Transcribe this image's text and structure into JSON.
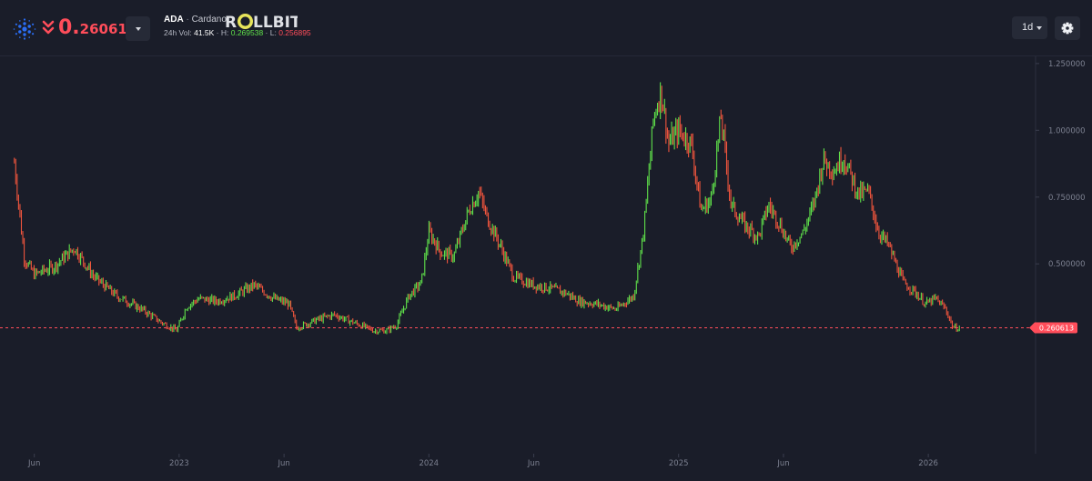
{
  "header": {
    "price_int": "0.",
    "price_dec": "260613",
    "symbol": "ADA",
    "name_sep": " · ",
    "name": "Cardano",
    "stats_prefix": "24h Vol: ",
    "volume": "41.5K",
    "high_prefix": " · H: ",
    "high": "0.269538",
    "low_prefix": " · L: ",
    "low": "0.256895",
    "brand": "ROLLBIT",
    "interval": "1d"
  },
  "icons": {
    "coin": "cardano-icon",
    "price_direction": "double-chevron-down-icon",
    "dropdown": "chevron-down-icon",
    "settings": "gear-icon"
  },
  "colors": {
    "background": "#1a1d29",
    "up": "#5fe04a",
    "down": "#f0553d",
    "price_line": "#ff4d5a",
    "price_tag": "#ff4d5a"
  },
  "chart_data": {
    "type": "candlestick",
    "interval": "1d",
    "current_price": 0.260613,
    "current_price_label": "0.260613",
    "y_ticks": [
      {
        "value": 1.25,
        "label": "1.250000"
      },
      {
        "value": 1.0,
        "label": "1.000000"
      },
      {
        "value": 0.75,
        "label": "0.750000"
      },
      {
        "value": 0.5,
        "label": "0.500000"
      }
    ],
    "x_ticks": [
      "Jun",
      "2023",
      "Jun",
      "2024",
      "Jun",
      "2025",
      "Jun",
      "2026"
    ],
    "x_tick_dates": [
      2022.42,
      2023.0,
      2023.42,
      2024.0,
      2024.42,
      2025.0,
      2025.42,
      2026.0
    ],
    "x_range": [
      2022.33,
      2026.2
    ],
    "ylim": [
      -0.17,
      1.27
    ],
    "grid": false,
    "series": [
      {
        "x": [
          2022.34,
          2022.38,
          2022.42,
          2022.5,
          2022.58,
          2022.66,
          2022.75,
          2022.85,
          2022.93,
          2022.99,
          2023.03,
          2023.08,
          2023.15,
          2023.22,
          2023.3,
          2023.38,
          2023.44,
          2023.47,
          2023.55,
          2023.62,
          2023.7,
          2023.78,
          2023.83,
          2023.87,
          2023.92,
          2023.97,
          2024.0,
          2024.05,
          2024.1,
          2024.16,
          2024.2,
          2024.23,
          2024.28,
          2024.34,
          2024.42,
          2024.48,
          2024.55,
          2024.6,
          2024.67,
          2024.75,
          2024.82,
          2024.86,
          2024.9,
          2024.93,
          2024.96,
          2025.0,
          2025.05,
          2025.09,
          2025.13,
          2025.17,
          2025.21,
          2025.26,
          2025.32,
          2025.36,
          2025.4,
          2025.45,
          2025.5,
          2025.54,
          2025.58,
          2025.62,
          2025.66,
          2025.72,
          2025.76,
          2025.8,
          2025.84,
          2025.9,
          2025.94,
          2025.99,
          2026.03,
          2026.07,
          2026.1,
          2026.13
        ],
        "y": [
          0.88,
          0.52,
          0.46,
          0.49,
          0.56,
          0.45,
          0.38,
          0.33,
          0.28,
          0.25,
          0.34,
          0.37,
          0.36,
          0.38,
          0.42,
          0.37,
          0.35,
          0.26,
          0.29,
          0.31,
          0.28,
          0.25,
          0.25,
          0.27,
          0.38,
          0.43,
          0.62,
          0.54,
          0.53,
          0.7,
          0.77,
          0.68,
          0.58,
          0.45,
          0.42,
          0.41,
          0.39,
          0.36,
          0.35,
          0.33,
          0.38,
          0.62,
          1.05,
          1.15,
          0.95,
          1.0,
          0.95,
          0.7,
          0.74,
          1.05,
          0.72,
          0.65,
          0.6,
          0.72,
          0.66,
          0.56,
          0.62,
          0.72,
          0.89,
          0.85,
          0.9,
          0.76,
          0.77,
          0.62,
          0.57,
          0.43,
          0.4,
          0.35,
          0.37,
          0.33,
          0.26,
          0.26
        ]
      }
    ]
  }
}
